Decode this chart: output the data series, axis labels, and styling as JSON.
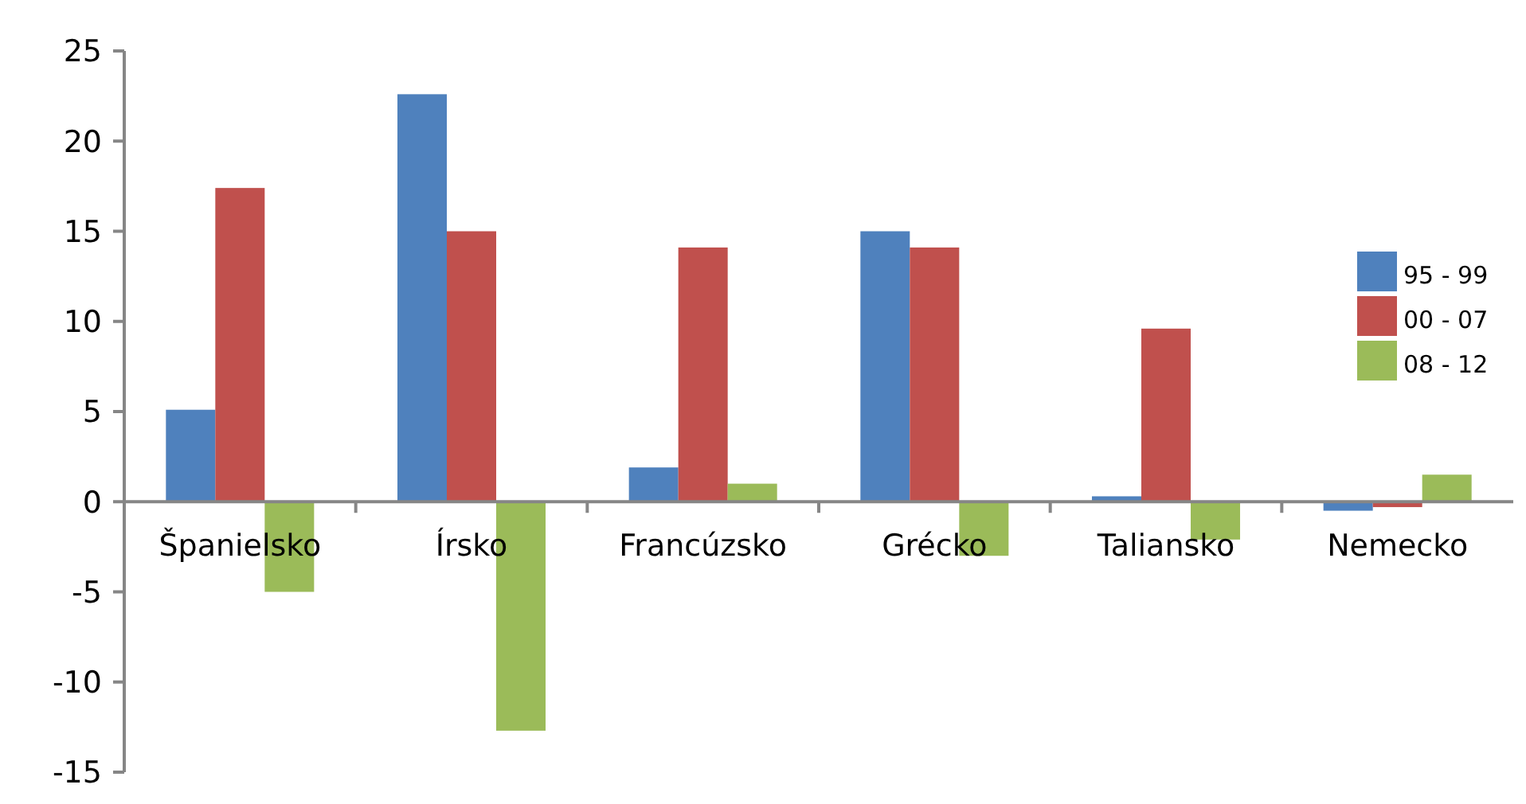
{
  "chart_data": {
    "type": "bar",
    "categories": [
      "Španielsko",
      "Írsko",
      "Francúzsko",
      "Grécko",
      "Taliansko",
      "Nemecko"
    ],
    "series": [
      {
        "name": "95 - 99",
        "color": "#4f81bd",
        "values": [
          5.1,
          22.6,
          1.9,
          15.0,
          0.3,
          -0.5
        ]
      },
      {
        "name": "00 - 07",
        "color": "#c0504d",
        "values": [
          17.4,
          15.0,
          14.1,
          14.1,
          9.6,
          -0.3
        ]
      },
      {
        "name": "08 - 12",
        "color": "#9bbb59",
        "values": [
          -5.0,
          -12.7,
          1.0,
          -3.0,
          -2.1,
          1.5
        ]
      }
    ],
    "ylim": [
      -15,
      25
    ],
    "yticks": [
      -15,
      -10,
      -5,
      0,
      5,
      10,
      15,
      20,
      25
    ],
    "grid": false,
    "legend": "right"
  }
}
